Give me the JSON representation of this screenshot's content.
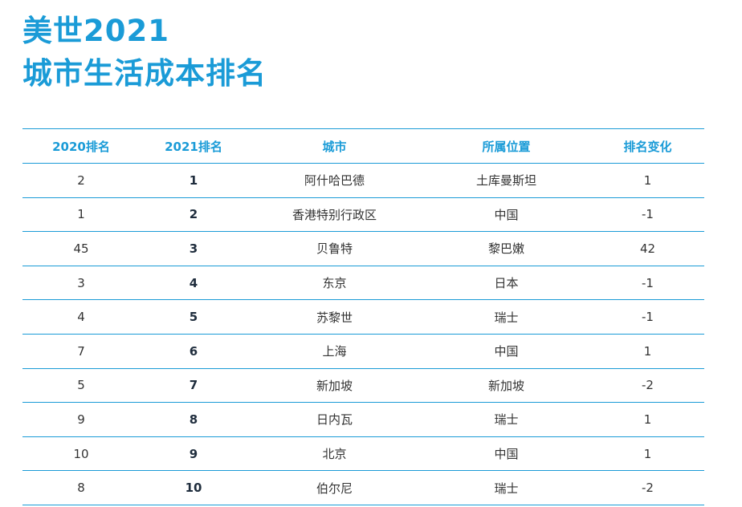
{
  "title": {
    "line1": "美世2021",
    "line2": "城市生活成本排名"
  },
  "colors": {
    "accent": "#1a9bd7",
    "text": "#333333"
  },
  "table": {
    "headers": [
      "2020排名",
      "2021排名",
      "城市",
      "所属位置",
      "排名变化"
    ],
    "rows": [
      {
        "rank_2020": "2",
        "rank_2021": "1",
        "city": "阿什哈巴德",
        "location": "土库曼斯坦",
        "change": "1"
      },
      {
        "rank_2020": "1",
        "rank_2021": "2",
        "city": "香港特别行政区",
        "location": "中国",
        "change": "-1"
      },
      {
        "rank_2020": "45",
        "rank_2021": "3",
        "city": "贝鲁特",
        "location": "黎巴嫩",
        "change": "42"
      },
      {
        "rank_2020": "3",
        "rank_2021": "4",
        "city": "东京",
        "location": "日本",
        "change": "-1"
      },
      {
        "rank_2020": "4",
        "rank_2021": "5",
        "city": "苏黎世",
        "location": "瑞士",
        "change": "-1"
      },
      {
        "rank_2020": "7",
        "rank_2021": "6",
        "city": "上海",
        "location": "中国",
        "change": "1"
      },
      {
        "rank_2020": "5",
        "rank_2021": "7",
        "city": "新加坡",
        "location": "新加坡",
        "change": "-2"
      },
      {
        "rank_2020": "9",
        "rank_2021": "8",
        "city": "日内瓦",
        "location": "瑞士",
        "change": "1"
      },
      {
        "rank_2020": "10",
        "rank_2021": "9",
        "city": "北京",
        "location": "中国",
        "change": "1"
      },
      {
        "rank_2020": "8",
        "rank_2021": "10",
        "city": "伯尔尼",
        "location": "瑞士",
        "change": "-2"
      }
    ]
  }
}
